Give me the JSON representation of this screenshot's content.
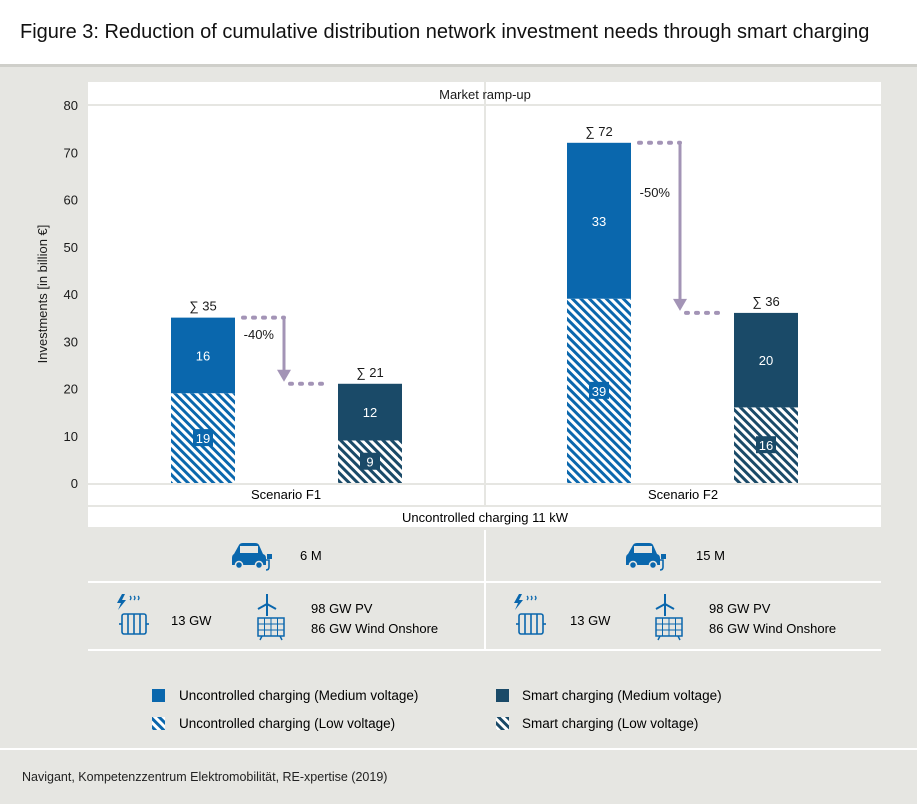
{
  "title": "Figure 3: Reduction of cumulative distribution network investment needs through smart charging",
  "footer_source": "Navigant, Kompetenzzentrum Elektromobilität, RE-xpertise (2019)",
  "panel_header": "Market ramp-up",
  "row_header": "Uncontrolled charging 11 kW",
  "colors": {
    "uncontrolled": "#0a67ad",
    "smart": "#1a4a68",
    "arrow": "#a394b6",
    "panel": "#ffffff",
    "background": "#e6e6e2"
  },
  "chart_data": {
    "type": "bar",
    "stacked": true,
    "ylabel": "Investments [in billion €]",
    "ylim": [
      0,
      80
    ],
    "yticks": [
      0,
      10,
      20,
      30,
      40,
      50,
      60,
      70,
      80
    ],
    "grid": false,
    "groups": [
      {
        "name": "Scenario F1",
        "bars": [
          {
            "kind": "uncontrolled",
            "low_voltage": 19,
            "medium_voltage": 16,
            "total_label": "∑ 35",
            "total": 35
          },
          {
            "kind": "smart",
            "low_voltage": 9,
            "medium_voltage": 12,
            "total_label": "∑ 21",
            "total": 21
          }
        ],
        "reduction_label": "-40%"
      },
      {
        "name": "Scenario F2",
        "bars": [
          {
            "kind": "uncontrolled",
            "low_voltage": 39,
            "medium_voltage": 33,
            "total_label": "∑ 72",
            "total": 72
          },
          {
            "kind": "smart",
            "low_voltage": 16,
            "medium_voltage": 20,
            "total_label": "∑ 36",
            "total": 36
          }
        ],
        "reduction_label": "-50%"
      }
    ],
    "legend": [
      {
        "label": "Uncontrolled charging (Medium voltage)",
        "kind": "uncontrolled",
        "pattern": "solid"
      },
      {
        "label": "Smart charging (Medium voltage)",
        "kind": "smart",
        "pattern": "solid"
      },
      {
        "label": "Uncontrolled charging (Low voltage)",
        "kind": "uncontrolled",
        "pattern": "hatch"
      },
      {
        "label": "Smart charging (Low voltage)",
        "kind": "smart",
        "pattern": "hatch"
      }
    ]
  },
  "scenarios_info": [
    {
      "vehicles": "6 M",
      "heat": "13 GW",
      "pv": "98 GW PV",
      "wind": "86 GW Wind Onshore"
    },
    {
      "vehicles": "15 M",
      "heat": "13 GW",
      "pv": "98 GW PV",
      "wind": "86 GW Wind Onshore"
    }
  ],
  "icons": [
    "electric-car-icon",
    "heat-pump-icon",
    "wind-solar-icon"
  ]
}
